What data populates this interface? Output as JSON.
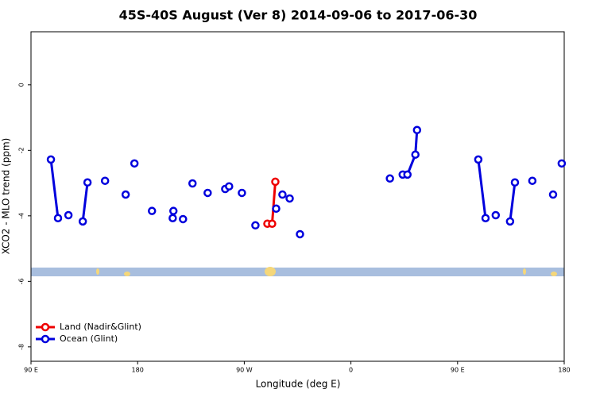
{
  "chart_data": {
    "type": "line",
    "title": "45S-40S August (Ver 8)   2014-09-06 to 2017-06-30",
    "x_label": "Longitude (deg E)",
    "y_label": "XCO2 - MLO trend (ppm)",
    "xlim": [
      90,
      540
    ],
    "ylim": [
      -8.44,
      1.62
    ],
    "xticks": [
      {
        "value": 90,
        "label": "90 E"
      },
      {
        "value": 180,
        "label": "180"
      },
      {
        "value": 270,
        "label": "90 W"
      },
      {
        "value": 360,
        "label": "0"
      },
      {
        "value": 450,
        "label": "90 E"
      },
      {
        "value": 540,
        "label": "180"
      }
    ],
    "yticks": [
      0,
      -2,
      -4,
      -6,
      -8
    ],
    "legend": "bottom-left",
    "series": [
      {
        "name": "Land (Nadir&Glint)",
        "color": "#ee0000",
        "x": [
          289.5,
          293.5,
          296.2
        ],
        "values": [
          -4.24,
          -4.24,
          -2.96
        ]
      },
      {
        "name": "Ocean (Glint)",
        "color": "#0000dd",
        "x": [
          106.8,
          112.8,
          null,
          121.6,
          null,
          133.7,
          137.7,
          null,
          152.5,
          null,
          169.9,
          null,
          177.3,
          null,
          192.1,
          null,
          209.6,
          null,
          210.2,
          null,
          218.3,
          null,
          226.3,
          null,
          239.1,
          null,
          253.9,
          null,
          257.2,
          null,
          268.0,
          null,
          279.4,
          null,
          296.9,
          null,
          302.2,
          null,
          308.3,
          null,
          317.0,
          null,
          392.9,
          null,
          403.7,
          407.7,
          414.4,
          415.8,
          null,
          467.5,
          473.6,
          null,
          482.2,
          null,
          494.3,
          498.4,
          null,
          513.1,
          null,
          530.6,
          null,
          537.9
        ],
        "values": [
          -2.28,
          -4.07,
          null,
          -3.98,
          null,
          -4.17,
          -2.98,
          null,
          -2.93,
          null,
          -3.35,
          null,
          -2.4,
          null,
          -3.85,
          null,
          -4.07,
          null,
          -3.85,
          null,
          -4.1,
          null,
          -3.01,
          null,
          -3.3,
          null,
          -3.18,
          null,
          -3.1,
          null,
          -3.3,
          null,
          -4.29,
          null,
          -3.78,
          null,
          -3.35,
          null,
          -3.47,
          null,
          -4.56,
          null,
          -2.86,
          null,
          -2.74,
          -2.74,
          -2.13,
          -1.38,
          null,
          -2.28,
          -4.07,
          null,
          -3.98,
          null,
          -4.17,
          -2.98,
          null,
          -2.93,
          null,
          -3.35,
          null,
          -2.4
        ]
      }
    ]
  }
}
